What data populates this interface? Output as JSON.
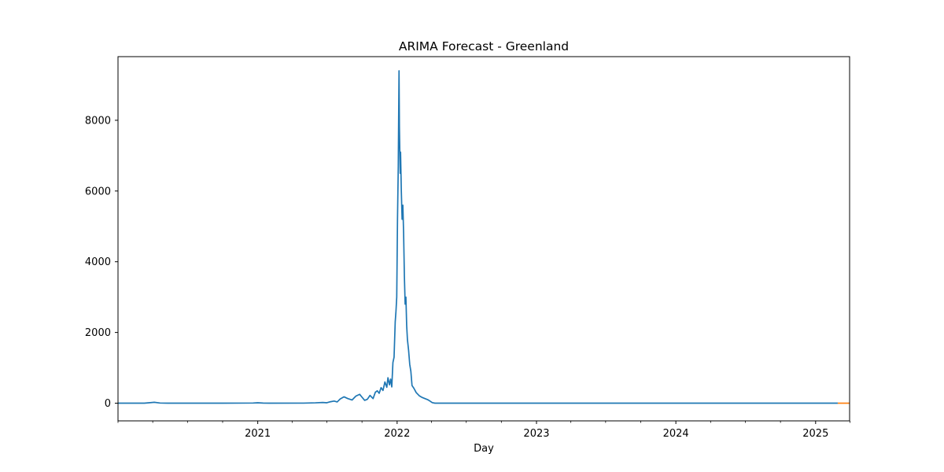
{
  "chart_data": {
    "type": "line",
    "title": "ARIMA Forecast - Greenland",
    "xlabel": "Day",
    "ylabel": "",
    "xlim": [
      "2020-01-01",
      "2025-03-31"
    ],
    "ylim": [
      -500,
      9800
    ],
    "grid": false,
    "legend": "none",
    "x_ticks": [
      {
        "date": "2021-01-01",
        "label": "2021"
      },
      {
        "date": "2022-01-01",
        "label": "2022"
      },
      {
        "date": "2023-01-01",
        "label": "2023"
      },
      {
        "date": "2024-01-01",
        "label": "2024"
      },
      {
        "date": "2025-01-01",
        "label": "2025"
      }
    ],
    "x_minor_ticks": [
      "2020-01-01",
      "2020-04-01",
      "2020-07-01",
      "2020-10-01",
      "2021-04-01",
      "2021-07-01",
      "2021-10-01",
      "2022-04-01",
      "2022-07-01",
      "2022-10-01",
      "2023-04-01",
      "2023-07-01",
      "2023-10-01",
      "2024-04-01",
      "2024-07-01",
      "2024-10-01",
      "2025-04-01"
    ],
    "y_ticks": [
      0,
      2000,
      4000,
      6000,
      8000
    ],
    "series": [
      {
        "color": "#1f77b4",
        "points": [
          [
            "2020-01-01",
            0
          ],
          [
            "2020-03-10",
            0
          ],
          [
            "2020-03-25",
            15
          ],
          [
            "2020-04-05",
            25
          ],
          [
            "2020-04-20",
            5
          ],
          [
            "2020-05-10",
            0
          ],
          [
            "2020-10-01",
            0
          ],
          [
            "2020-12-20",
            5
          ],
          [
            "2021-01-01",
            12
          ],
          [
            "2021-01-15",
            3
          ],
          [
            "2021-02-01",
            0
          ],
          [
            "2021-05-01",
            2
          ],
          [
            "2021-06-01",
            10
          ],
          [
            "2021-06-20",
            20
          ],
          [
            "2021-07-01",
            12
          ],
          [
            "2021-07-10",
            40
          ],
          [
            "2021-07-20",
            60
          ],
          [
            "2021-07-28",
            35
          ],
          [
            "2021-08-05",
            120
          ],
          [
            "2021-08-15",
            180
          ],
          [
            "2021-08-25",
            130
          ],
          [
            "2021-09-05",
            90
          ],
          [
            "2021-09-15",
            200
          ],
          [
            "2021-09-25",
            250
          ],
          [
            "2021-10-01",
            170
          ],
          [
            "2021-10-08",
            80
          ],
          [
            "2021-10-15",
            110
          ],
          [
            "2021-10-22",
            220
          ],
          [
            "2021-10-30",
            130
          ],
          [
            "2021-11-05",
            310
          ],
          [
            "2021-11-10",
            350
          ],
          [
            "2021-11-15",
            280
          ],
          [
            "2021-11-20",
            440
          ],
          [
            "2021-11-25",
            360
          ],
          [
            "2021-11-30",
            600
          ],
          [
            "2021-12-05",
            450
          ],
          [
            "2021-12-08",
            720
          ],
          [
            "2021-12-12",
            520
          ],
          [
            "2021-12-15",
            680
          ],
          [
            "2021-12-18",
            460
          ],
          [
            "2021-12-21",
            1150
          ],
          [
            "2021-12-24",
            1300
          ],
          [
            "2021-12-27",
            2300
          ],
          [
            "2021-12-29",
            2600
          ],
          [
            "2021-12-31",
            3000
          ],
          [
            "2022-01-02",
            5200
          ],
          [
            "2022-01-04",
            6700
          ],
          [
            "2022-01-06",
            9400
          ],
          [
            "2022-01-07",
            7800
          ],
          [
            "2022-01-09",
            6500
          ],
          [
            "2022-01-10",
            7100
          ],
          [
            "2022-01-12",
            6000
          ],
          [
            "2022-01-14",
            5200
          ],
          [
            "2022-01-16",
            5600
          ],
          [
            "2022-01-18",
            4800
          ],
          [
            "2022-01-20",
            3600
          ],
          [
            "2022-01-22",
            2800
          ],
          [
            "2022-01-24",
            3000
          ],
          [
            "2022-01-26",
            2200
          ],
          [
            "2022-01-28",
            1800
          ],
          [
            "2022-01-31",
            1500
          ],
          [
            "2022-02-03",
            1100
          ],
          [
            "2022-02-06",
            900
          ],
          [
            "2022-02-09",
            500
          ],
          [
            "2022-02-14",
            420
          ],
          [
            "2022-02-20",
            300
          ],
          [
            "2022-02-28",
            210
          ],
          [
            "2022-03-08",
            160
          ],
          [
            "2022-03-15",
            130
          ],
          [
            "2022-03-22",
            100
          ],
          [
            "2022-03-28",
            60
          ],
          [
            "2022-04-03",
            15
          ],
          [
            "2022-04-10",
            0
          ],
          [
            "2025-02-28",
            0
          ]
        ]
      },
      {
        "color": "#ff7f0e",
        "points": [
          [
            "2025-02-28",
            0
          ],
          [
            "2025-03-31",
            0
          ]
        ]
      }
    ]
  }
}
